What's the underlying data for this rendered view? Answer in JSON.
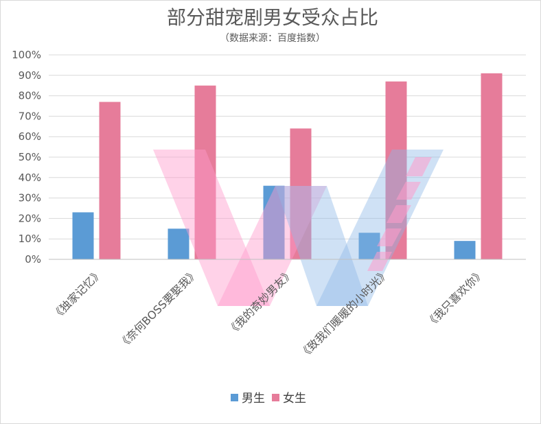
{
  "chart_data": {
    "type": "bar",
    "title": "部分甜宠剧男女受众占比",
    "subtitle": "（数据来源：百度指数）",
    "categories": [
      "《独家记忆》",
      "《奈何BOSS要娶我》",
      "《我的奇妙男友》",
      "《致我们暖暖的小时光》",
      "《我只喜欢你》"
    ],
    "series": [
      {
        "name": "男生",
        "color": "#5b9bd5",
        "values": [
          23,
          15,
          36,
          13,
          9
        ]
      },
      {
        "name": "女生",
        "color": "#e67c9a",
        "values": [
          77,
          85,
          64,
          87,
          91
        ]
      }
    ],
    "yticks": [
      "0%",
      "10%",
      "20%",
      "30%",
      "40%",
      "50%",
      "60%",
      "70%",
      "80%",
      "90%",
      "100%"
    ],
    "ylim": [
      0,
      100
    ],
    "grid": true,
    "legend_position": "bottom",
    "watermark": {
      "description": "large stylized translucent W logo",
      "colors": [
        "#ff9ccb",
        "#8cb8e8"
      ]
    }
  }
}
